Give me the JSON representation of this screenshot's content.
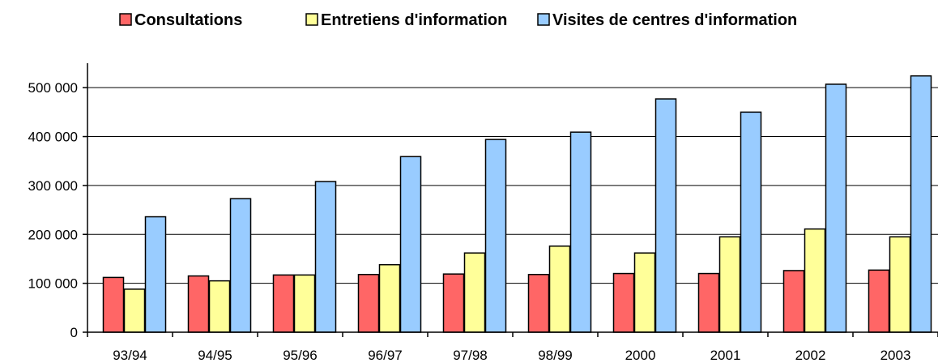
{
  "chart_data": {
    "type": "bar",
    "title": "",
    "xlabel": "",
    "ylabel": "",
    "categories": [
      "93/94",
      "94/95",
      "95/96",
      "96/97",
      "97/98",
      "98/99",
      "2000",
      "2001",
      "2002",
      "2003"
    ],
    "series": [
      {
        "name": "Consultations",
        "color": "#ff6666",
        "values": [
          112000,
          115000,
          117000,
          118000,
          119000,
          118000,
          120000,
          120000,
          126000,
          127000
        ]
      },
      {
        "name": "Entretiens d'information",
        "color": "#ffff99",
        "values": [
          88000,
          105000,
          117000,
          138000,
          162000,
          176000,
          162000,
          195000,
          211000,
          195000
        ]
      },
      {
        "name": "Visites de centres d'information",
        "color": "#99ccff",
        "values": [
          236000,
          273000,
          308000,
          359000,
          394000,
          409000,
          477000,
          450000,
          507000,
          524000
        ]
      }
    ],
    "ylim": [
      0,
      550000
    ],
    "yticks": [
      0,
      100000,
      200000,
      300000,
      400000,
      500000
    ],
    "ytick_labels": [
      "0",
      "100 000",
      "200 000",
      "300 000",
      "400 000",
      "500 000"
    ],
    "grid": true,
    "legend_position": "top"
  }
}
